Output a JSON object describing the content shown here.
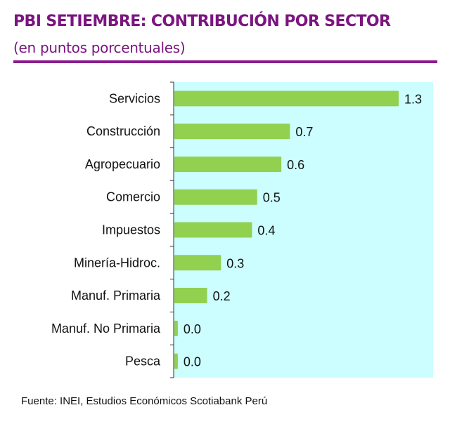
{
  "chart_data": {
    "type": "bar",
    "orientation": "horizontal",
    "title": "PBI SETIEMBRE: CONTRIBUCIÓN POR SECTOR",
    "subtitle": "(en puntos porcentuales)",
    "categories": [
      "Servicios",
      "Construcción",
      "Agropecuario",
      "Comercio",
      "Impuestos",
      "Minería-Hidroc.",
      "Manuf. Primaria",
      "Manuf. No Primaria",
      "Pesca"
    ],
    "values": [
      1.3,
      0.67,
      0.62,
      0.48,
      0.45,
      0.27,
      0.19,
      0.02,
      0.02
    ],
    "data_labels": [
      "1.3",
      "0.7",
      "0.6",
      "0.5",
      "0.4",
      "0.3",
      "0.2",
      "0.0",
      "0.0"
    ],
    "xlim": [
      0,
      1.5
    ],
    "grid": false,
    "colors": {
      "bar": "#92d050",
      "plot_background": "#ccfdff",
      "title": "#7b1580"
    }
  },
  "source": "Fuente: INEI, Estudios Económicos Scotiabank Perú"
}
